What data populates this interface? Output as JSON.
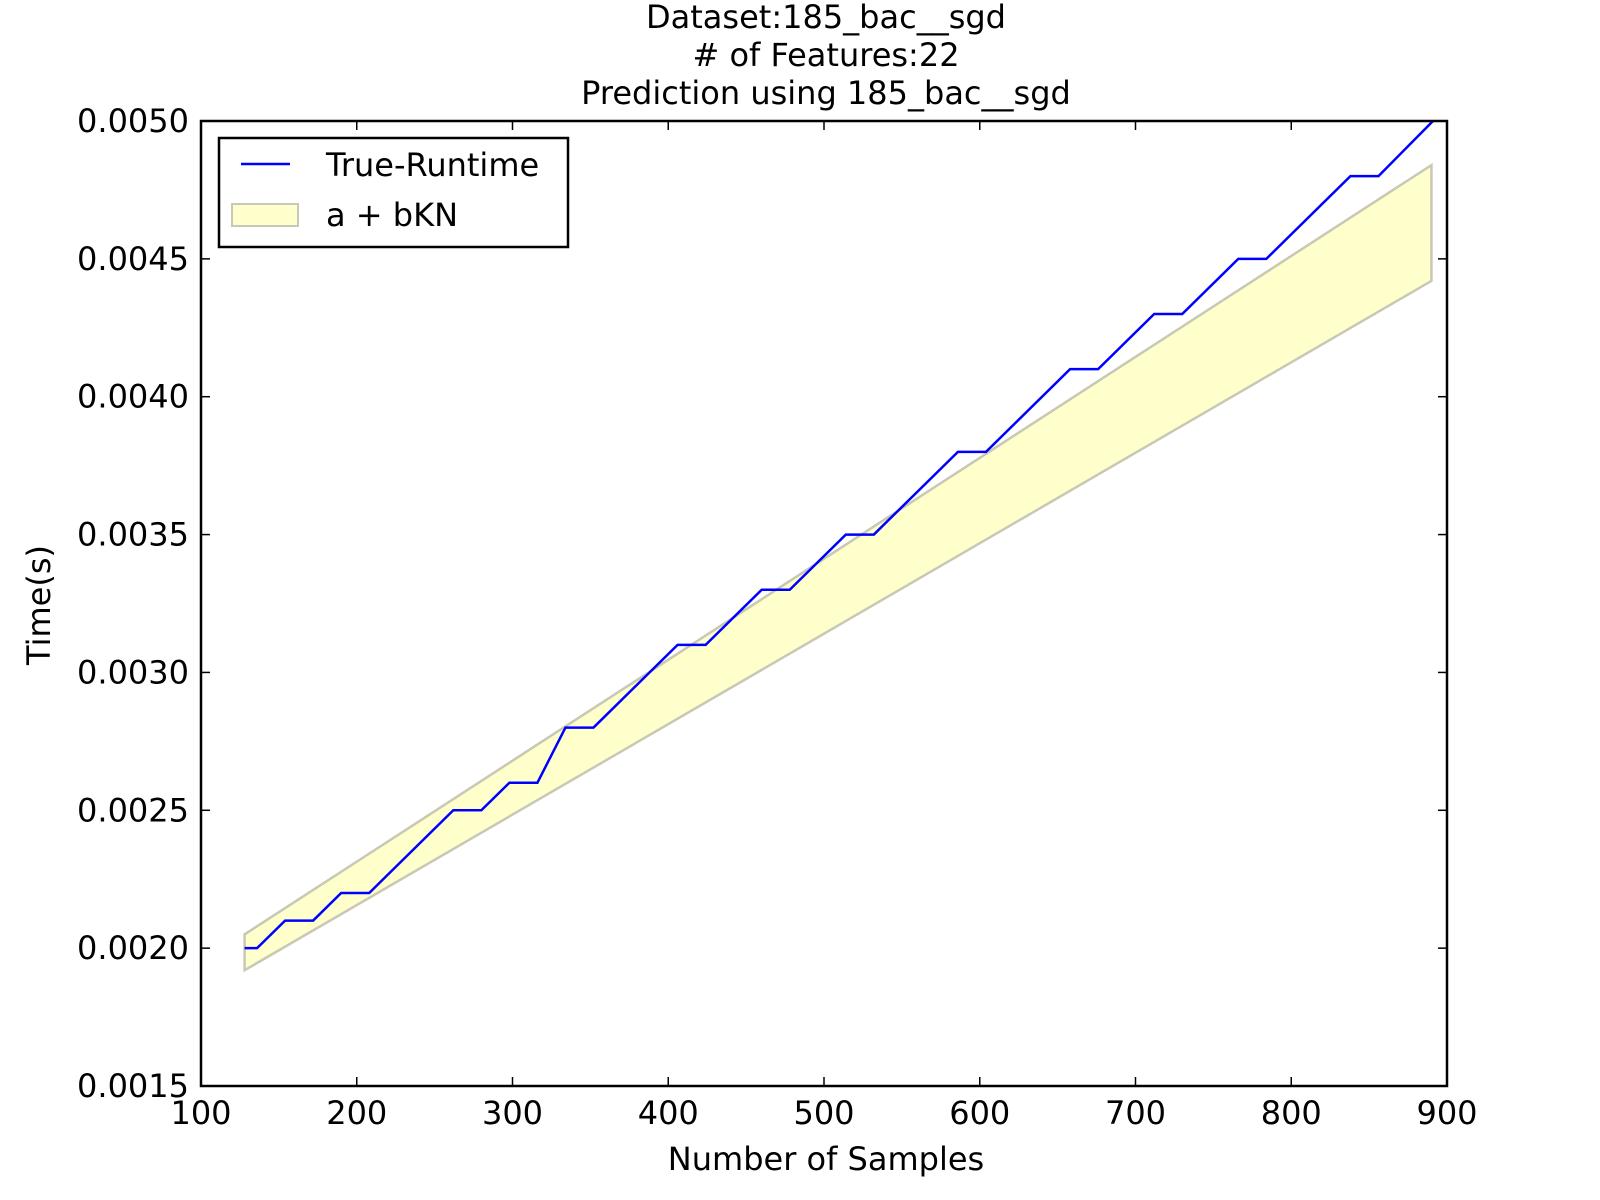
{
  "chart_data": {
    "type": "line",
    "title_lines": [
      "Dataset:185_bac__sgd",
      "# of Features:22",
      "Prediction using 185_bac__sgd"
    ],
    "xlabel": "Number of Samples",
    "ylabel": "Time(s)",
    "xlim": [
      100,
      900
    ],
    "ylim": [
      0.0015,
      0.005
    ],
    "xticks": [
      "100",
      "200",
      "300",
      "400",
      "500",
      "600",
      "700",
      "800",
      "900"
    ],
    "yticks": [
      "0.0015",
      "0.0020",
      "0.0025",
      "0.0030",
      "0.0035",
      "0.0040",
      "0.0045",
      "0.0050"
    ],
    "grid": false,
    "legend_position": "top-left",
    "series": [
      {
        "name": "True-Runtime",
        "kind": "line",
        "color": "#0000ff",
        "points": [
          [
            128,
            0.002
          ],
          [
            136,
            0.002
          ],
          [
            154,
            0.0021
          ],
          [
            172,
            0.0021
          ],
          [
            190,
            0.0022
          ],
          [
            208,
            0.0022
          ],
          [
            262,
            0.0025
          ],
          [
            280,
            0.0025
          ],
          [
            298,
            0.0026
          ],
          [
            316,
            0.0026
          ],
          [
            334,
            0.0028
          ],
          [
            352,
            0.0028
          ],
          [
            406,
            0.0031
          ],
          [
            424,
            0.0031
          ],
          [
            460,
            0.0033
          ],
          [
            478,
            0.0033
          ],
          [
            514,
            0.0035
          ],
          [
            532,
            0.0035
          ],
          [
            586,
            0.0038
          ],
          [
            604,
            0.0038
          ],
          [
            658,
            0.0041
          ],
          [
            676,
            0.0041
          ],
          [
            712,
            0.0043
          ],
          [
            730,
            0.0043
          ],
          [
            766,
            0.0045
          ],
          [
            784,
            0.0045
          ],
          [
            838,
            0.0048
          ],
          [
            856,
            0.0048
          ],
          [
            891,
            0.005
          ]
        ]
      },
      {
        "name": "a + bKN",
        "kind": "band",
        "fill_color": "#ffffcc",
        "edge_color": "#c8c8b4",
        "x": [
          128,
          890
        ],
        "upper": [
          0.00205,
          0.00484
        ],
        "lower": [
          0.00192,
          0.00442
        ]
      }
    ]
  }
}
